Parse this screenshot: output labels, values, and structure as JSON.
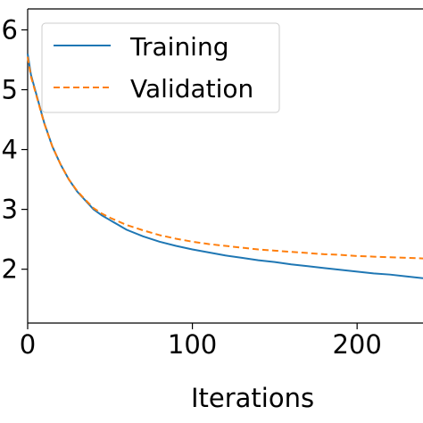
{
  "chart_data": {
    "type": "line",
    "xlabel": "Iterations",
    "ylabel": "",
    "xlim": [
      0,
      240
    ],
    "ylim": [
      1.1,
      6.35
    ],
    "xticks": [
      0,
      100,
      200
    ],
    "yticks": [
      2,
      3,
      4,
      5,
      6
    ],
    "grid": false,
    "legend_position": "top-left",
    "series": [
      {
        "name": "Training",
        "color": "#1f77b4",
        "style": "solid",
        "x": [
          0,
          2,
          5,
          10,
          15,
          20,
          25,
          30,
          35,
          40,
          45,
          50,
          55,
          60,
          70,
          80,
          90,
          100,
          110,
          120,
          130,
          140,
          150,
          160,
          170,
          180,
          190,
          200,
          210,
          220,
          230,
          240
        ],
        "y": [
          5.6,
          5.25,
          4.95,
          4.45,
          4.05,
          3.75,
          3.5,
          3.3,
          3.15,
          3.0,
          2.9,
          2.82,
          2.74,
          2.66,
          2.55,
          2.46,
          2.39,
          2.33,
          2.28,
          2.23,
          2.19,
          2.15,
          2.12,
          2.08,
          2.05,
          2.02,
          1.99,
          1.96,
          1.93,
          1.91,
          1.88,
          1.85
        ]
      },
      {
        "name": "Validation",
        "color": "#ff7f0e",
        "style": "dashed",
        "x": [
          0,
          2,
          5,
          10,
          15,
          20,
          25,
          30,
          35,
          40,
          45,
          50,
          55,
          60,
          70,
          80,
          90,
          100,
          110,
          120,
          130,
          140,
          150,
          160,
          170,
          180,
          190,
          200,
          210,
          220,
          230,
          240
        ],
        "y": [
          5.55,
          5.22,
          4.93,
          4.44,
          4.05,
          3.75,
          3.5,
          3.31,
          3.16,
          3.02,
          2.93,
          2.86,
          2.8,
          2.74,
          2.65,
          2.57,
          2.51,
          2.46,
          2.42,
          2.39,
          2.36,
          2.33,
          2.31,
          2.29,
          2.27,
          2.25,
          2.24,
          2.22,
          2.21,
          2.2,
          2.19,
          2.18
        ]
      }
    ]
  }
}
